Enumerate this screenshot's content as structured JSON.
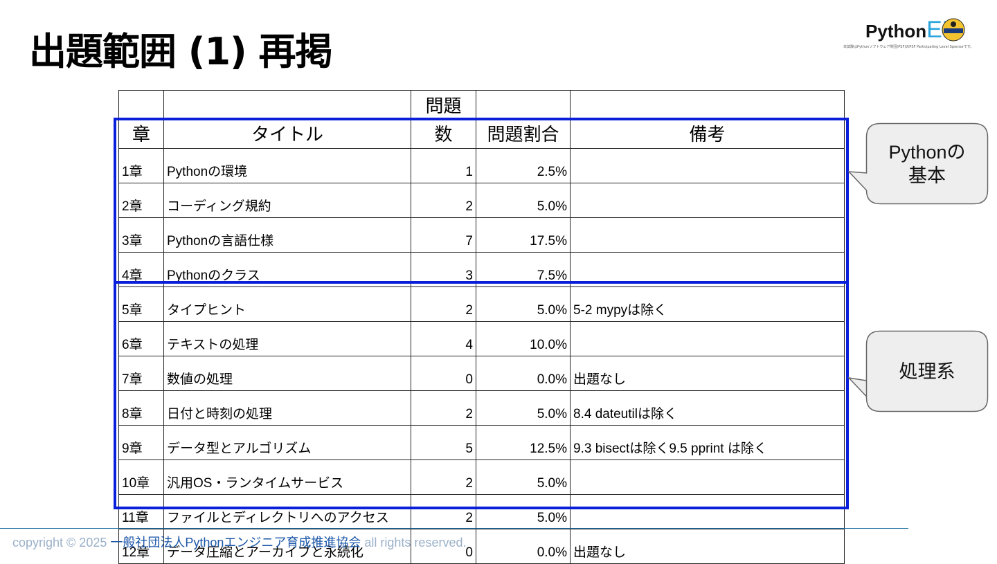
{
  "title": "出題範囲 (1) 再掲",
  "logo": {
    "python": "Python",
    "ed": "ED",
    "tagline": "本試験はPythonソフトウェア財団(PSF)のPSF Participating Level Sponsorです。"
  },
  "table": {
    "headers": {
      "chapter": "章",
      "title": "タイトル",
      "count_line1": "問題",
      "count_line2": "数",
      "ratio": "問題割合",
      "note": "備考"
    },
    "rows": [
      {
        "chapter": "1章",
        "title": "Pythonの環境",
        "count": "1",
        "ratio": "2.5%",
        "note": ""
      },
      {
        "chapter": "2章",
        "title": "コーディング規約",
        "count": "2",
        "ratio": "5.0%",
        "note": ""
      },
      {
        "chapter": "3章",
        "title": "Pythonの言語仕様",
        "count": "7",
        "ratio": "17.5%",
        "note": ""
      },
      {
        "chapter": "4章",
        "title": "Pythonのクラス",
        "count": "3",
        "ratio": "7.5%",
        "note": ""
      },
      {
        "chapter": "5章",
        "title": "タイプヒント",
        "count": "2",
        "ratio": "5.0%",
        "note": "5-2 mypyは除く"
      },
      {
        "chapter": "6章",
        "title": "テキストの処理",
        "count": "4",
        "ratio": "10.0%",
        "note": ""
      },
      {
        "chapter": "7章",
        "title": "数値の処理",
        "count": "0",
        "ratio": "0.0%",
        "note": "出題なし"
      },
      {
        "chapter": "8章",
        "title": "日付と時刻の処理",
        "count": "2",
        "ratio": "5.0%",
        "note": "8.4 dateutilは除く"
      },
      {
        "chapter": "9章",
        "title": "データ型とアルゴリズム",
        "count": "5",
        "ratio": "12.5%",
        "note": "9.3 bisectは除く9.5 pprint は除く"
      },
      {
        "chapter": "10章",
        "title": "汎用OS・ランタイムサービス",
        "count": "2",
        "ratio": "5.0%",
        "note": ""
      },
      {
        "chapter": "11章",
        "title": "ファイルとディレクトリへのアクセス",
        "count": "2",
        "ratio": "5.0%",
        "note": ""
      },
      {
        "chapter": "12章",
        "title": "データ圧縮とアーカイブと永続化",
        "count": "0",
        "ratio": "0.0%",
        "note": "出題なし"
      }
    ]
  },
  "callouts": {
    "basics_line1": "Pythonの",
    "basics_line2": "基本",
    "processing": "処理系"
  },
  "footer": {
    "prefix": "copyright © 2025 ",
    "org": "一般社団法人Pythonエンジニア育成推進協会",
    "suffix": " all rights reserved."
  },
  "colors": {
    "highlight": "#0a1fd9",
    "footer_line": "#1c6ea4",
    "logo_ed": "#2aa6dd"
  }
}
